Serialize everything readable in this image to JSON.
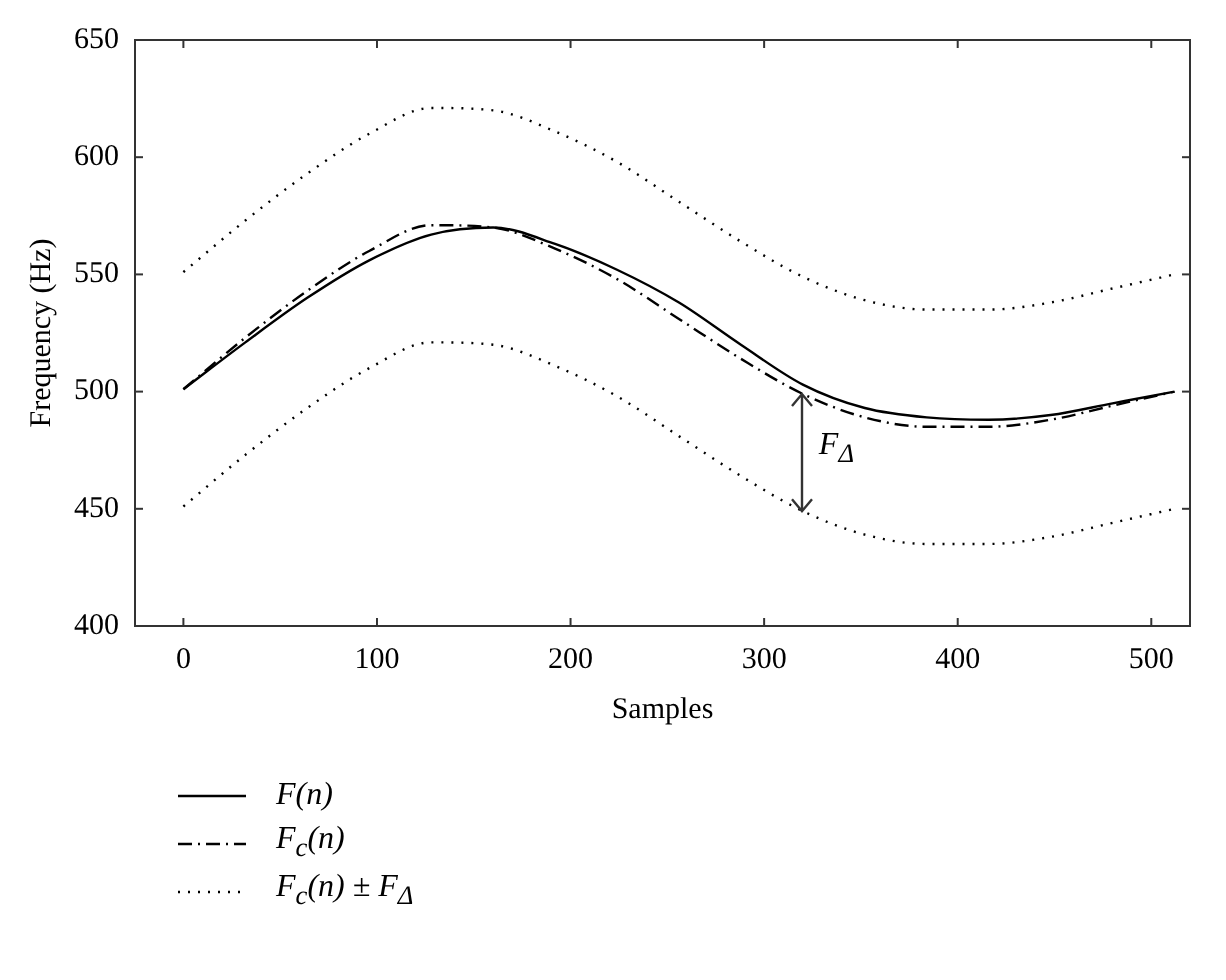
{
  "chart_data": {
    "type": "line",
    "xlabel": "Samples",
    "ylabel": "Frequency (Hz)",
    "xlim": [
      -25,
      520
    ],
    "xticks": [
      0,
      100,
      200,
      300,
      400,
      500
    ],
    "ylim": [
      400,
      650
    ],
    "yticks": [
      400,
      450,
      500,
      550,
      600,
      650
    ],
    "x": [
      0,
      32,
      64,
      96,
      128,
      160,
      192,
      224,
      256,
      288,
      320,
      352,
      384,
      416,
      448,
      480,
      512
    ],
    "series": [
      {
        "name": "F(n)",
        "color": "#000000",
        "line_style": "solid",
        "values": [
          501,
          521,
          540,
          556,
          567,
          570,
          563,
          552,
          538,
          520,
          503,
          493,
          489,
          488,
          490,
          495,
          500
        ]
      },
      {
        "name": "F$_{c}$(n)",
        "color": "#000000",
        "line_style": "dashdot",
        "values": [
          501,
          523,
          543,
          560,
          571,
          570,
          561,
          548,
          531,
          514,
          499,
          489,
          485,
          485,
          488,
          494,
          500
        ]
      },
      {
        "name": "F$_{c}$(n) ± F$_{Δ}$",
        "color": "#000000",
        "line_style": "dotted",
        "values": [
          551,
          573,
          593,
          610,
          621,
          620,
          611,
          598,
          581,
          564,
          549,
          539,
          535,
          535,
          538,
          544,
          550
        ]
      },
      {
        "color": "#000000",
        "line_style": "dotted",
        "values": [
          451,
          473,
          493,
          510,
          521,
          520,
          511,
          498,
          481,
          464,
          449,
          439,
          435,
          435,
          438,
          444,
          450
        ]
      }
    ],
    "annotations": [
      {
        "text": "F$_{Δ}$",
        "x": 320,
        "y": 499
      }
    ],
    "grid": false,
    "legend": "bottom left",
    "marker": "none"
  }
}
